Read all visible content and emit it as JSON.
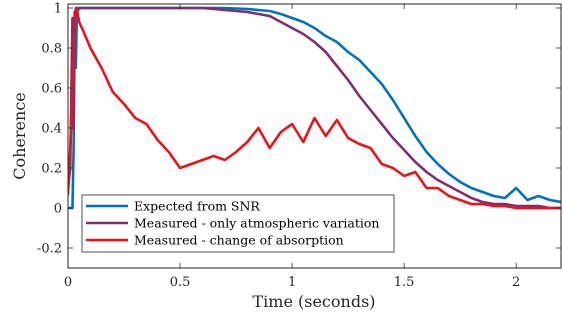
{
  "chart_data": {
    "type": "line",
    "title": "",
    "xlabel": "Time (seconds)",
    "ylabel": "Coherence",
    "xlim": [
      0,
      2.2
    ],
    "ylim": [
      -0.3,
      1.02
    ],
    "xticks": [
      0,
      0.5,
      1,
      1.5,
      2
    ],
    "xtick_labels": [
      "0",
      "0.5",
      "1",
      "1.5",
      "2"
    ],
    "yticks": [
      -0.2,
      0,
      0.2,
      0.4,
      0.6,
      0.8,
      1
    ],
    "ytick_labels": [
      "-0.2",
      "0",
      "0.2",
      "0.4",
      "0.6",
      "0.8",
      "1"
    ],
    "grid": false,
    "legend_position": "bottom-left",
    "series": [
      {
        "name": "Expected from SNR",
        "color": "#0072BD",
        "x": [
          0,
          0.02,
          0.025,
          0.03,
          0.035,
          0.04,
          0.05,
          0.1,
          0.2,
          0.3,
          0.4,
          0.5,
          0.6,
          0.7,
          0.8,
          0.85,
          0.9,
          0.95,
          1.0,
          1.05,
          1.1,
          1.15,
          1.2,
          1.25,
          1.3,
          1.35,
          1.4,
          1.45,
          1.5,
          1.55,
          1.6,
          1.65,
          1.7,
          1.75,
          1.8,
          1.85,
          1.9,
          1.95,
          2.0,
          2.05,
          2.1,
          2.15,
          2.2
        ],
        "y": [
          0,
          0,
          0.3,
          0.95,
          0.7,
          1.0,
          1.0,
          1.0,
          1.0,
          1.0,
          1.0,
          1.0,
          1.0,
          1.0,
          0.995,
          0.99,
          0.985,
          0.97,
          0.95,
          0.93,
          0.9,
          0.86,
          0.83,
          0.78,
          0.74,
          0.68,
          0.62,
          0.54,
          0.45,
          0.36,
          0.28,
          0.22,
          0.17,
          0.13,
          0.1,
          0.08,
          0.06,
          0.05,
          0.1,
          0.04,
          0.06,
          0.04,
          0.03
        ]
      },
      {
        "name": "Measured - only atmospheric variation",
        "color": "#7E2F6E",
        "x": [
          0,
          0.01,
          0.02,
          0.025,
          0.03,
          0.035,
          0.04,
          0.05,
          0.1,
          0.2,
          0.3,
          0.4,
          0.5,
          0.6,
          0.7,
          0.8,
          0.85,
          0.9,
          0.95,
          1.0,
          1.05,
          1.1,
          1.15,
          1.2,
          1.25,
          1.3,
          1.35,
          1.4,
          1.45,
          1.5,
          1.55,
          1.6,
          1.65,
          1.7,
          1.75,
          1.8,
          1.85,
          1.9,
          1.95,
          2.0,
          2.05,
          2.1,
          2.15,
          2.2
        ],
        "y": [
          0.1,
          0.2,
          0.95,
          0.4,
          0.95,
          1.0,
          0.98,
          1.0,
          1.0,
          1.0,
          1.0,
          1.0,
          1.0,
          1.0,
          0.99,
          0.98,
          0.97,
          0.96,
          0.93,
          0.9,
          0.87,
          0.83,
          0.78,
          0.71,
          0.64,
          0.56,
          0.49,
          0.42,
          0.35,
          0.29,
          0.23,
          0.18,
          0.14,
          0.11,
          0.08,
          0.05,
          0.03,
          0.02,
          0.02,
          0.01,
          0.01,
          0.01,
          0.0,
          0.0
        ]
      },
      {
        "name": "Measured - change of absorption",
        "color": "#E8141B",
        "x": [
          0,
          0.01,
          0.02,
          0.03,
          0.04,
          0.05,
          0.07,
          0.1,
          0.15,
          0.2,
          0.25,
          0.3,
          0.35,
          0.4,
          0.45,
          0.5,
          0.55,
          0.6,
          0.65,
          0.7,
          0.75,
          0.8,
          0.85,
          0.9,
          0.95,
          1.0,
          1.05,
          1.1,
          1.15,
          1.2,
          1.25,
          1.3,
          1.35,
          1.4,
          1.45,
          1.5,
          1.55,
          1.6,
          1.65,
          1.7,
          1.75,
          1.8,
          1.85,
          1.9,
          1.95,
          2.0,
          2.1,
          2.2
        ],
        "y": [
          0.07,
          0.3,
          0.6,
          0.98,
          0.99,
          0.93,
          0.88,
          0.8,
          0.7,
          0.58,
          0.52,
          0.45,
          0.42,
          0.34,
          0.28,
          0.2,
          0.22,
          0.24,
          0.26,
          0.24,
          0.28,
          0.33,
          0.4,
          0.3,
          0.38,
          0.42,
          0.33,
          0.45,
          0.36,
          0.44,
          0.35,
          0.32,
          0.3,
          0.22,
          0.2,
          0.16,
          0.18,
          0.1,
          0.1,
          0.06,
          0.04,
          0.02,
          0.02,
          0.01,
          0.01,
          0.0,
          0.0,
          0.0
        ]
      }
    ]
  }
}
